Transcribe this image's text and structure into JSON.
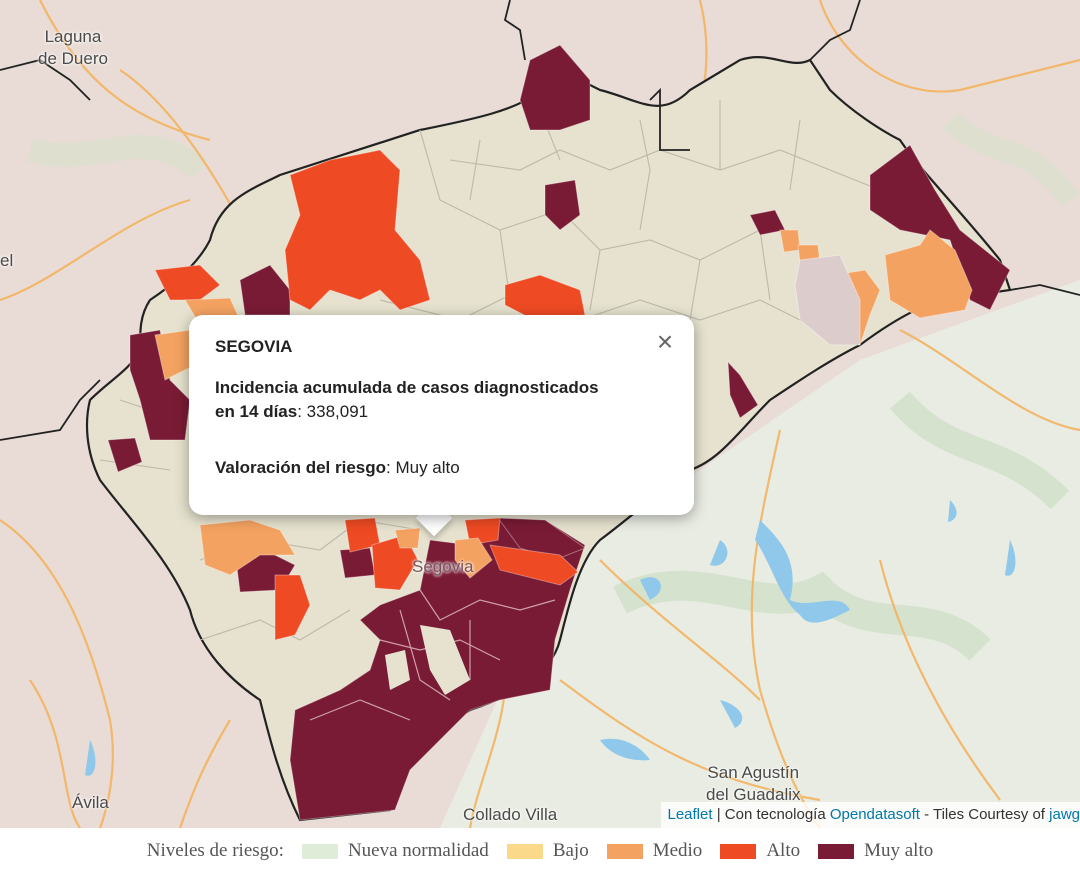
{
  "places": [
    {
      "name": "Laguna de Duero",
      "lines": [
        "Laguna",
        "de Duero"
      ]
    },
    {
      "name": "Ávila",
      "lines": [
        "Ávila"
      ]
    },
    {
      "name": "San Agustín del Guadalix",
      "lines": [
        "San Agustín",
        "del Guadalix"
      ]
    },
    {
      "name": "Collado Villa",
      "lines": [
        "Collado Villa"
      ]
    },
    {
      "name": "Segovia",
      "lines": [
        "Segovia"
      ]
    },
    {
      "name": "el",
      "lines": [
        "el"
      ]
    }
  ],
  "popup": {
    "title": "SEGOVIA",
    "incidence_label_line1": "Incidencia acumulada de casos diagnosticados",
    "incidence_label_line2": "en 14 días",
    "incidence_value": "338,091",
    "risk_label": "Valoración del riesgo",
    "risk_value": "Muy alto",
    "close_icon": "×"
  },
  "attribution": {
    "leaflet": "Leaflet",
    "sep": " | Con tecnología ",
    "opendatasoft": "Opendatasoft",
    "tiles": " - Tiles Courtesy of ",
    "jawg": "jawg"
  },
  "legend": {
    "title": "Niveles de riesgo:",
    "items": [
      {
        "label": "Nueva normalidad",
        "color": "#dfecd8"
      },
      {
        "label": "Bajo",
        "color": "#fbd98a"
      },
      {
        "label": "Medio",
        "color": "#f4a261"
      },
      {
        "label": "Alto",
        "color": "#ee4a23"
      },
      {
        "label": "Muy alto",
        "color": "#7a1b35"
      }
    ]
  },
  "colors": {
    "base_fill": "#e6e2cf",
    "muy_alto": "#7a1b35",
    "alto": "#ee4a23",
    "medio": "#f4a261",
    "water": "#8fc8ea",
    "road": "#f3b35f"
  }
}
